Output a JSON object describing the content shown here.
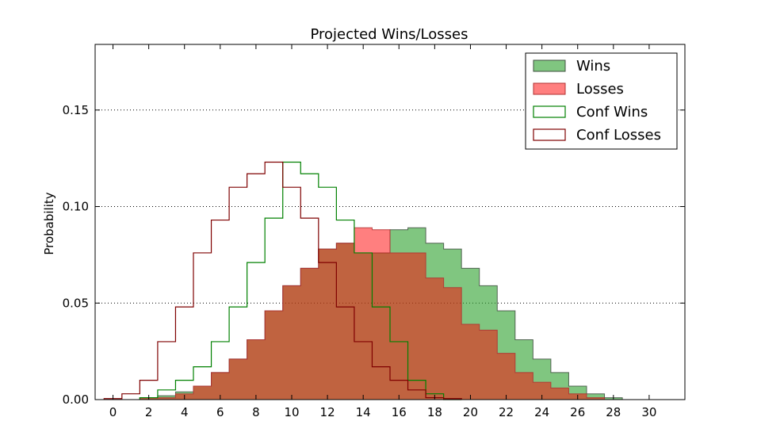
{
  "chart_data": {
    "type": "histogram-step",
    "title": "Projected Wins/Losses",
    "xlabel": "",
    "ylabel": "Probability",
    "xlim": [
      -1,
      32
    ],
    "ylim": [
      0,
      0.184
    ],
    "x_ticks": [
      0,
      2,
      4,
      6,
      8,
      10,
      12,
      14,
      16,
      18,
      20,
      22,
      24,
      26,
      28,
      30
    ],
    "y_ticks": [
      0.0,
      0.05,
      0.1,
      0.15
    ],
    "y_tick_labels": [
      "0.00",
      "0.05",
      "0.10",
      "0.15"
    ],
    "grid": "y-dotted",
    "legend_position": "top-right",
    "series": [
      {
        "name": "Wins",
        "style": "filled",
        "color": "#2ca02c",
        "edge": "#3f4f3f",
        "opacity": 0.6,
        "bins_start": 1.5,
        "values": [
          0.001,
          0.002,
          0.004,
          0.007,
          0.014,
          0.021,
          0.031,
          0.046,
          0.059,
          0.068,
          0.078,
          0.081,
          0.076,
          0.076,
          0.088,
          0.089,
          0.081,
          0.078,
          0.068,
          0.059,
          0.046,
          0.031,
          0.021,
          0.014,
          0.007,
          0.003,
          0.001
        ]
      },
      {
        "name": "Losses",
        "style": "filled",
        "color": "#ff0000",
        "edge": "#b03030",
        "opacity": 0.5,
        "bins_start": 1.5,
        "values": [
          0.001,
          0.001,
          0.003,
          0.007,
          0.014,
          0.021,
          0.031,
          0.046,
          0.059,
          0.068,
          0.078,
          0.081,
          0.089,
          0.088,
          0.076,
          0.076,
          0.063,
          0.058,
          0.039,
          0.036,
          0.024,
          0.014,
          0.009,
          0.006,
          0.003,
          0.001,
          0.0
        ]
      },
      {
        "name": "Conf Wins",
        "style": "step",
        "color": "#008000",
        "bins_start": 1.5,
        "values": [
          0.001,
          0.005,
          0.01,
          0.017,
          0.03,
          0.048,
          0.071,
          0.094,
          0.123,
          0.117,
          0.11,
          0.093,
          0.076,
          0.048,
          0.03,
          0.01,
          0.003,
          0.0
        ]
      },
      {
        "name": "Conf Losses",
        "style": "step",
        "color": "#7f0000",
        "bins_start": -0.5,
        "values": [
          0.0005,
          0.003,
          0.01,
          0.03,
          0.048,
          0.076,
          0.093,
          0.11,
          0.117,
          0.123,
          0.11,
          0.094,
          0.071,
          0.048,
          0.03,
          0.017,
          0.01,
          0.005,
          0.001,
          0.0005
        ]
      }
    ]
  }
}
